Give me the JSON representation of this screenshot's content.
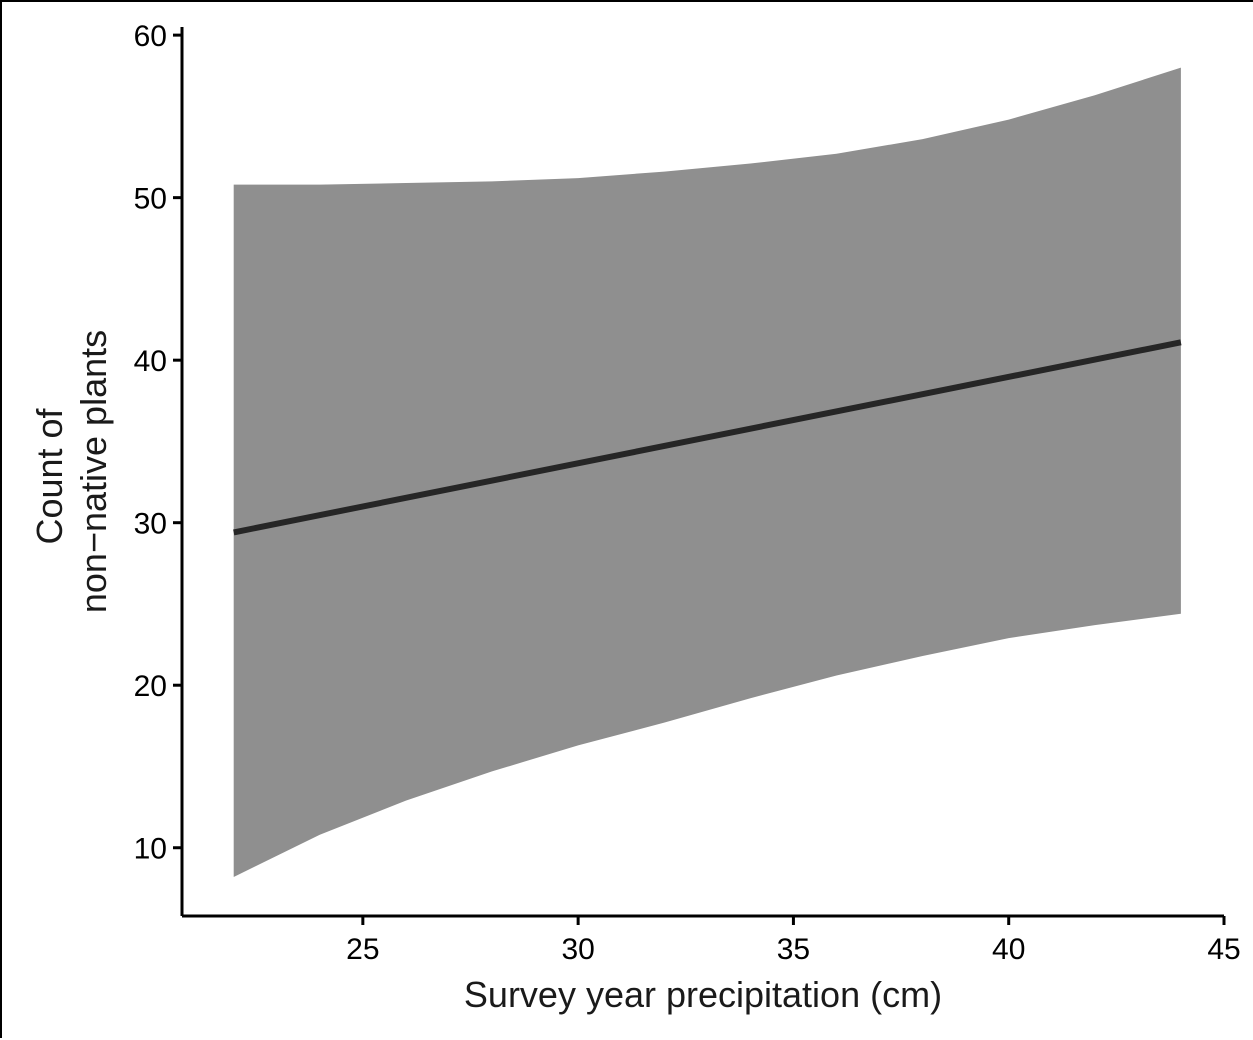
{
  "chart_data": {
    "type": "line",
    "title": "",
    "xlabel": "Survey year precipitation (cm)",
    "ylabel_lines": [
      "Count of",
      "non−native plants"
    ],
    "xlim": [
      20.8,
      45
    ],
    "ylim": [
      5.8,
      60.5
    ],
    "xticks": [
      25,
      30,
      35,
      40,
      45
    ],
    "yticks": [
      10,
      20,
      30,
      40,
      50,
      60
    ],
    "grid": false,
    "legend": "none",
    "series": [
      {
        "x": [
          22,
          44
        ],
        "y": [
          29.4,
          41.1
        ]
      }
    ],
    "ribbon": {
      "x": [
        22,
        24,
        26,
        28,
        30,
        32,
        34,
        36,
        38,
        40,
        42,
        44
      ],
      "lower": [
        8.2,
        10.8,
        12.9,
        14.7,
        16.3,
        17.7,
        19.2,
        20.6,
        21.8,
        22.9,
        23.7,
        24.4
      ],
      "upper": [
        50.8,
        50.8,
        50.9,
        51.0,
        51.2,
        51.6,
        52.1,
        52.7,
        53.6,
        54.8,
        56.3,
        58.0
      ]
    },
    "colors": {
      "line": "#262626",
      "ribbon": "#8f8f8f",
      "axis": "#000000"
    }
  }
}
